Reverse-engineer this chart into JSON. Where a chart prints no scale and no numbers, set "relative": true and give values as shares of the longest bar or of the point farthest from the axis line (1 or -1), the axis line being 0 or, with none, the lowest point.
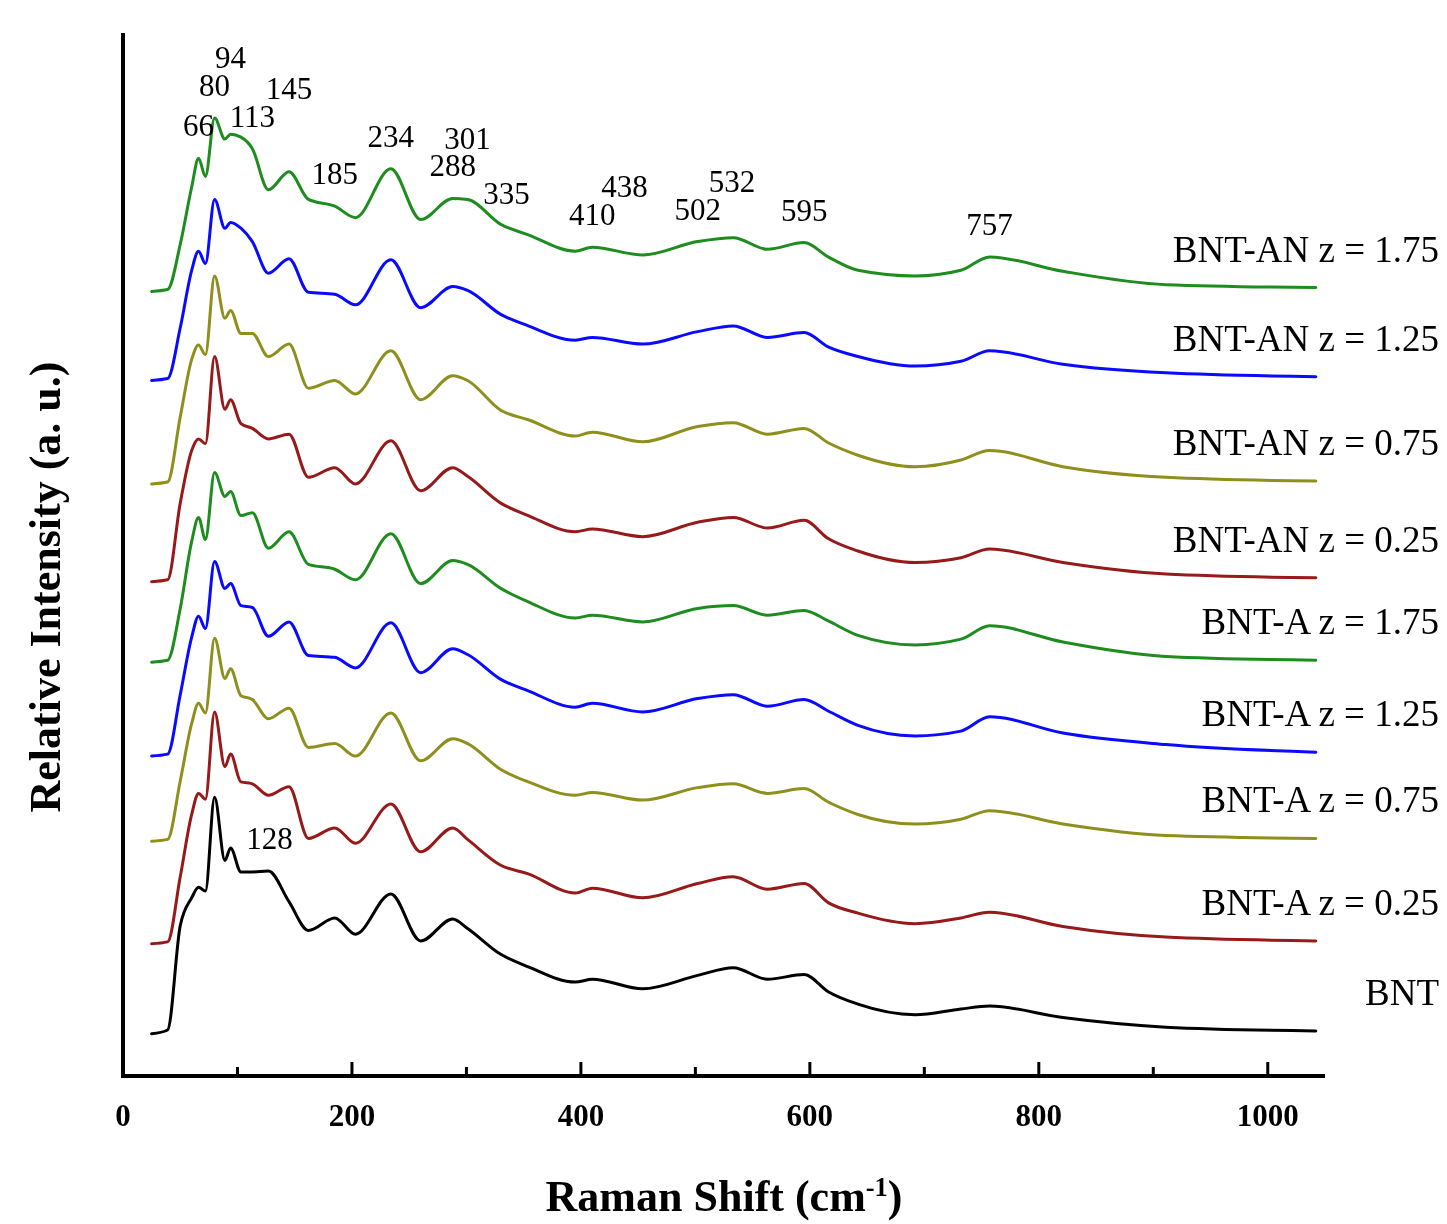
{
  "chart_data": {
    "type": "line",
    "xlabel": "Raman Shift (cm$^{-1}$)",
    "ylabel": "Relative Intensity (a. u.)",
    "relative": true,
    "marker": "none",
    "line_style": "solid",
    "legend": false,
    "grid": false,
    "xlim": [
      0,
      1050
    ],
    "xticks": [
      0,
      {
        "value": 100,
        "label": null
      },
      200,
      {
        "value": 300,
        "label": null
      },
      400,
      {
        "value": 500,
        "label": null
      },
      600,
      {
        "value": 700,
        "label": null
      },
      800,
      {
        "value": 900,
        "label": null
      },
      1000
    ],
    "x": [
      25,
      39,
      50,
      60,
      66,
      72,
      80,
      89,
      94,
      103,
      113,
      127,
      145,
      162,
      185,
      203,
      234,
      260,
      288,
      301,
      330,
      354,
      395,
      410,
      454,
      502,
      533,
      563,
      595,
      616,
      642,
      692,
      732,
      757,
      821,
      911,
      1042
    ],
    "series": [
      {
        "name": "BNT-AN z = 1.75",
        "color": "#1e8c1e",
        "values": [
          0.819,
          0.821,
          0.868,
          0.928,
          0.958,
          0.939,
          1.0,
          0.978,
          0.983,
          0.98,
          0.968,
          0.925,
          0.944,
          0.915,
          0.908,
          0.896,
          0.947,
          0.894,
          0.916,
          0.915,
          0.889,
          0.878,
          0.861,
          0.865,
          0.857,
          0.871,
          0.875,
          0.863,
          0.87,
          0.855,
          0.841,
          0.835,
          0.841,
          0.855,
          0.84,
          0.826,
          0.823
        ]
      },
      {
        "name": "BNT-AN z = 1.25",
        "color": "#0a0aff",
        "values": [
          0.726,
          0.728,
          0.781,
          0.841,
          0.861,
          0.848,
          0.915,
          0.885,
          0.891,
          0.885,
          0.871,
          0.838,
          0.853,
          0.818,
          0.816,
          0.805,
          0.852,
          0.802,
          0.824,
          0.82,
          0.795,
          0.783,
          0.768,
          0.771,
          0.764,
          0.777,
          0.783,
          0.771,
          0.776,
          0.761,
          0.751,
          0.741,
          0.746,
          0.757,
          0.743,
          0.734,
          0.73
        ]
      },
      {
        "name": "BNT-AN z = 0.75",
        "color": "#8f8f1e",
        "values": [
          0.618,
          0.62,
          0.688,
          0.748,
          0.763,
          0.753,
          0.835,
          0.791,
          0.799,
          0.775,
          0.775,
          0.751,
          0.764,
          0.718,
          0.726,
          0.712,
          0.757,
          0.706,
          0.731,
          0.726,
          0.695,
          0.685,
          0.668,
          0.672,
          0.662,
          0.678,
          0.682,
          0.67,
          0.676,
          0.661,
          0.648,
          0.636,
          0.643,
          0.653,
          0.636,
          0.625,
          0.621
        ]
      },
      {
        "name": "BNT-AN z = 0.25",
        "color": "#961a1a",
        "values": [
          0.516,
          0.518,
          0.598,
          0.653,
          0.665,
          0.66,
          0.751,
          0.696,
          0.706,
          0.681,
          0.676,
          0.665,
          0.67,
          0.625,
          0.635,
          0.618,
          0.663,
          0.611,
          0.635,
          0.626,
          0.598,
          0.585,
          0.568,
          0.571,
          0.563,
          0.578,
          0.583,
          0.572,
          0.58,
          0.561,
          0.548,
          0.536,
          0.541,
          0.55,
          0.536,
          0.524,
          0.52
        ]
      },
      {
        "name": "BNT-A z = 1.75",
        "color": "#1e8c1e",
        "values": [
          0.432,
          0.434,
          0.488,
          0.558,
          0.583,
          0.56,
          0.63,
          0.605,
          0.61,
          0.585,
          0.588,
          0.551,
          0.568,
          0.534,
          0.529,
          0.518,
          0.566,
          0.514,
          0.538,
          0.534,
          0.509,
          0.495,
          0.478,
          0.481,
          0.474,
          0.488,
          0.491,
          0.481,
          0.486,
          0.475,
          0.46,
          0.45,
          0.456,
          0.47,
          0.453,
          0.438,
          0.434
        ]
      },
      {
        "name": "BNT-A z = 1.25",
        "color": "#0a0aff",
        "values": [
          0.334,
          0.336,
          0.398,
          0.458,
          0.48,
          0.467,
          0.537,
          0.509,
          0.514,
          0.491,
          0.489,
          0.459,
          0.474,
          0.439,
          0.437,
          0.426,
          0.473,
          0.421,
          0.446,
          0.44,
          0.414,
          0.402,
          0.385,
          0.389,
          0.38,
          0.394,
          0.398,
          0.386,
          0.393,
          0.381,
          0.366,
          0.355,
          0.36,
          0.375,
          0.358,
          0.346,
          0.338
        ]
      },
      {
        "name": "BNT-A z = 0.75",
        "color": "#8f8f1e",
        "values": [
          0.245,
          0.247,
          0.308,
          0.368,
          0.389,
          0.379,
          0.457,
          0.415,
          0.425,
          0.397,
          0.393,
          0.373,
          0.384,
          0.343,
          0.347,
          0.334,
          0.379,
          0.329,
          0.352,
          0.347,
          0.32,
          0.307,
          0.293,
          0.296,
          0.288,
          0.301,
          0.305,
          0.295,
          0.3,
          0.286,
          0.273,
          0.263,
          0.268,
          0.277,
          0.263,
          0.251,
          0.248
        ]
      },
      {
        "name": "BNT-A z = 0.25",
        "color": "#961a1a",
        "values": [
          0.138,
          0.14,
          0.208,
          0.273,
          0.295,
          0.289,
          0.38,
          0.323,
          0.336,
          0.307,
          0.305,
          0.293,
          0.302,
          0.248,
          0.259,
          0.243,
          0.284,
          0.234,
          0.259,
          0.247,
          0.22,
          0.211,
          0.191,
          0.196,
          0.186,
          0.201,
          0.208,
          0.195,
          0.201,
          0.181,
          0.17,
          0.159,
          0.165,
          0.171,
          0.156,
          0.145,
          0.141
        ]
      },
      {
        "name": "BNT",
        "color": "#000000",
        "values": [
          0.044,
          0.048,
          0.157,
          0.186,
          0.197,
          0.193,
          0.291,
          0.225,
          0.238,
          0.213,
          0.213,
          0.214,
          0.182,
          0.152,
          0.165,
          0.148,
          0.19,
          0.141,
          0.164,
          0.154,
          0.127,
          0.114,
          0.098,
          0.101,
          0.091,
          0.105,
          0.113,
          0.101,
          0.106,
          0.088,
          0.075,
          0.064,
          0.07,
          0.073,
          0.061,
          0.051,
          0.047
        ]
      }
    ],
    "annotations": [
      {
        "text": "66",
        "x": 66,
        "y": 0.958
      },
      {
        "text": "80",
        "x": 80,
        "y": 1.0
      },
      {
        "text": "94",
        "x": 94,
        "y": 0.983
      },
      {
        "text": "113",
        "x": 113,
        "y": 0.968
      },
      {
        "text": "145",
        "x": 145,
        "y": 0.944
      },
      {
        "text": "185",
        "x": 185,
        "y": 0.908
      },
      {
        "text": "234",
        "x": 234,
        "y": 0.947
      },
      {
        "text": "288",
        "x": 288,
        "y": 0.916
      },
      {
        "text": "301",
        "x": 301,
        "y": 0.915
      },
      {
        "text": "335",
        "x": 335,
        "y": 0.887
      },
      {
        "text": "410",
        "x": 410,
        "y": 0.865
      },
      {
        "text": "438",
        "x": 438,
        "y": 0.86
      },
      {
        "text": "502",
        "x": 502,
        "y": 0.871
      },
      {
        "text": "532",
        "x": 532,
        "y": 0.875
      },
      {
        "text": "595",
        "x": 595,
        "y": 0.87
      },
      {
        "text": "757",
        "x": 757,
        "y": 0.855
      },
      {
        "text": "128",
        "x": 128,
        "y": 0.214
      }
    ]
  }
}
